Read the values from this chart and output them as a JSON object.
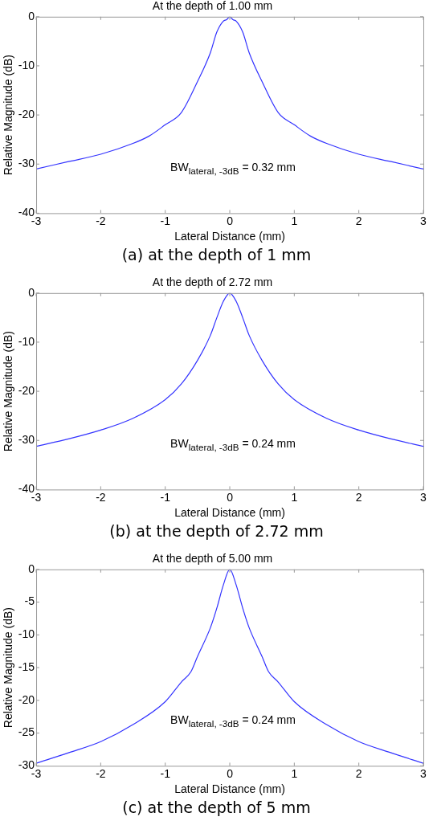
{
  "chart_data": [
    {
      "type": "line",
      "title": "At the depth of 1.00 mm",
      "xlabel": "Lateral Distance (mm)",
      "ylabel": "Relative Magnitude (dB)",
      "xlim": [
        -3,
        3
      ],
      "xticks": [
        -3,
        -2,
        -1,
        0,
        1,
        2,
        3
      ],
      "ylim": [
        -40,
        0
      ],
      "yticks": [
        -40,
        -30,
        -20,
        -10,
        0
      ],
      "grid": false,
      "legend": false,
      "marker": "none",
      "line_style": "solid",
      "annotations": [
        "BW$_{lateral, -3dB}$ = 0.32 mm",
        "(a) at the depth of 1 mm"
      ],
      "series": [
        {
          "color": "#3333ff",
          "x": [
            -3,
            -2.5,
            -2,
            -1.5,
            -1.25,
            -1,
            -0.75,
            -0.5,
            -0.3,
            -0.2,
            -0.1,
            -0.05,
            0,
            0.05,
            0.1,
            0.2,
            0.3,
            0.5,
            0.75,
            1,
            1.25,
            1.5,
            2,
            2.5,
            3
          ],
          "values": [
            -31,
            -29.5,
            -28,
            -25.8,
            -24.3,
            -22,
            -19.5,
            -13.2,
            -7.3,
            -3.1,
            -0.9,
            -0.6,
            0,
            -0.6,
            -0.9,
            -3.1,
            -7.3,
            -13.2,
            -19.5,
            -22,
            -24.3,
            -25.8,
            -28,
            -29.5,
            -31
          ]
        }
      ]
    },
    {
      "type": "line",
      "title": "At the depth of 2.72 mm",
      "xlabel": "Lateral Distance (mm)",
      "ylabel": "Relative Magnitude (dB)",
      "xlim": [
        -3,
        3
      ],
      "xticks": [
        -3,
        -2,
        -1,
        0,
        1,
        2,
        3
      ],
      "ylim": [
        -40,
        0
      ],
      "yticks": [
        -40,
        -30,
        -20,
        -10,
        0
      ],
      "grid": false,
      "legend": false,
      "marker": "none",
      "line_style": "solid",
      "annotations": [
        "BW$_{lateral, -3dB}$ = 0.24 mm",
        "(b) at the depth of 2.72 mm"
      ],
      "series": [
        {
          "color": "#3333ff",
          "x": [
            -3,
            -2.5,
            -2,
            -1.5,
            -1,
            -0.75,
            -0.5,
            -0.3,
            -0.2,
            -0.1,
            0,
            0.1,
            0.2,
            0.3,
            0.5,
            0.75,
            1,
            1.5,
            2,
            2.5,
            3
          ],
          "values": [
            -31.2,
            -29.7,
            -27.9,
            -25.5,
            -21.7,
            -18.5,
            -13.7,
            -8.6,
            -5,
            -1.7,
            0,
            -1.7,
            -5,
            -8.6,
            -13.7,
            -18.5,
            -21.7,
            -25.5,
            -27.9,
            -29.7,
            -31.2
          ]
        }
      ]
    },
    {
      "type": "line",
      "title": "At the depth of 5.00 mm",
      "xlabel": "Lateral Distance (mm)",
      "ylabel": "Relative Magnitude (dB)",
      "xlim": [
        -3,
        3
      ],
      "xticks": [
        -3,
        -2,
        -1,
        0,
        1,
        2,
        3
      ],
      "ylim": [
        -30,
        0
      ],
      "yticks": [
        -30,
        -25,
        -20,
        -15,
        -10,
        -5,
        0
      ],
      "grid": false,
      "legend": false,
      "marker": "none",
      "line_style": "solid",
      "annotations": [
        "BW$_{lateral, -3dB}$ = 0.24 mm",
        "(c) at the depth of 5 mm"
      ],
      "series": [
        {
          "color": "#3333ff",
          "x": [
            -3,
            -2.5,
            -2,
            -1.5,
            -1,
            -0.75,
            -0.6,
            -0.5,
            -0.3,
            -0.2,
            -0.1,
            0,
            0.1,
            0.2,
            0.3,
            0.5,
            0.6,
            0.75,
            1,
            1.5,
            2,
            2.5,
            3
          ],
          "values": [
            -29.6,
            -28,
            -26.3,
            -23.7,
            -20.2,
            -17.2,
            -15.6,
            -13.3,
            -8.9,
            -5.9,
            -2.4,
            0,
            -2.4,
            -5.9,
            -8.9,
            -13.3,
            -15.6,
            -17.2,
            -20.2,
            -23.7,
            -26.3,
            -28,
            -29.6
          ]
        }
      ]
    }
  ]
}
